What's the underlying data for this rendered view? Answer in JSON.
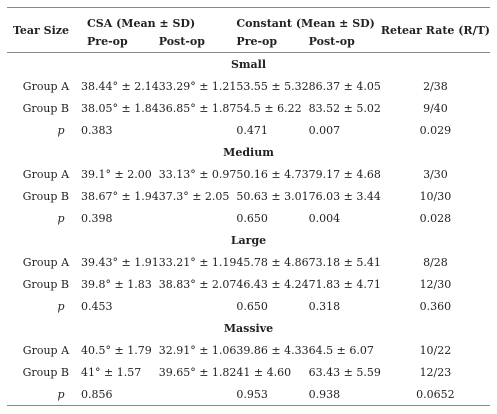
{
  "headers": {
    "tear_size": "Tear Size",
    "csa": "CSA (Mean ± SD)",
    "constant": "Constant (Mean ± SD)",
    "retear": "Retear Rate (R/T)",
    "preop": "Pre-op",
    "postop": "Post-op"
  },
  "sections": [
    {
      "name": "Small",
      "rows": [
        {
          "label": "Group A",
          "csa_pre": "38.44° ± 2.14",
          "csa_post": "33.29° ± 1.21",
          "con_pre": "53.55 ± 5.32",
          "con_post": "86.37 ± 4.05",
          "retear": "2/38"
        },
        {
          "label": "Group B",
          "csa_pre": "38.05° ± 1.84",
          "csa_post": "36.85° ± 1.87",
          "con_pre": "54.5 ± 6.22",
          "con_post": "83.52 ± 5.02",
          "retear": "9/40"
        }
      ],
      "p": {
        "label": "p",
        "csa": "0.383",
        "con_pre": "0.471",
        "con_post": "0.007",
        "retear": "0.029"
      }
    },
    {
      "name": "Medium",
      "rows": [
        {
          "label": "Group A",
          "csa_pre": "39.1° ± 2.00",
          "csa_post": "33.13° ± 0.97",
          "con_pre": "50.16 ± 4.73",
          "con_post": "79.17 ± 4.68",
          "retear": "3/30"
        },
        {
          "label": "Group B",
          "csa_pre": "38.67° ± 1.94",
          "csa_post": "37.3° ± 2.05",
          "con_pre": "50.63 ± 3.01",
          "con_post": "76.03 ± 3.44",
          "retear": "10/30"
        }
      ],
      "p": {
        "label": "p",
        "csa": "0.398",
        "con_pre": "0.650",
        "con_post": "0.004",
        "retear": "0.028"
      }
    },
    {
      "name": "Large",
      "rows": [
        {
          "label": "Group A",
          "csa_pre": "39.43° ± 1.91",
          "csa_post": "33.21° ± 1.19",
          "con_pre": "45.78 ± 4.86",
          "con_post": "73.18 ± 5.41",
          "retear": "8/28"
        },
        {
          "label": "Group B",
          "csa_pre": "39.8° ± 1.83",
          "csa_post": "38.83° ± 2.07",
          "con_pre": "46.43 ± 4.24",
          "con_post": "71.83 ± 4.71",
          "retear": "12/30"
        }
      ],
      "p": {
        "label": "p",
        "csa": "0.453",
        "con_pre": "0.650",
        "con_post": "0.318",
        "retear": "0.360"
      }
    },
    {
      "name": "Massive",
      "rows": [
        {
          "label": "Group A",
          "csa_pre": "40.5° ± 1.79",
          "csa_post": "32.91° ± 1.06",
          "con_pre": "39.86 ± 4.33",
          "con_post": "64.5 ± 6.07",
          "retear": "10/22"
        },
        {
          "label": "Group B",
          "csa_pre": "41° ± 1.57",
          "csa_post": "39.65° ± 1.82",
          "con_pre": "41 ± 4.60",
          "con_post": "63.43 ± 5.59",
          "retear": "12/23"
        }
      ],
      "p": {
        "label": "p",
        "csa": "0.856",
        "con_pre": "0.953",
        "con_post": "0.938",
        "retear": "0.0652"
      }
    }
  ]
}
